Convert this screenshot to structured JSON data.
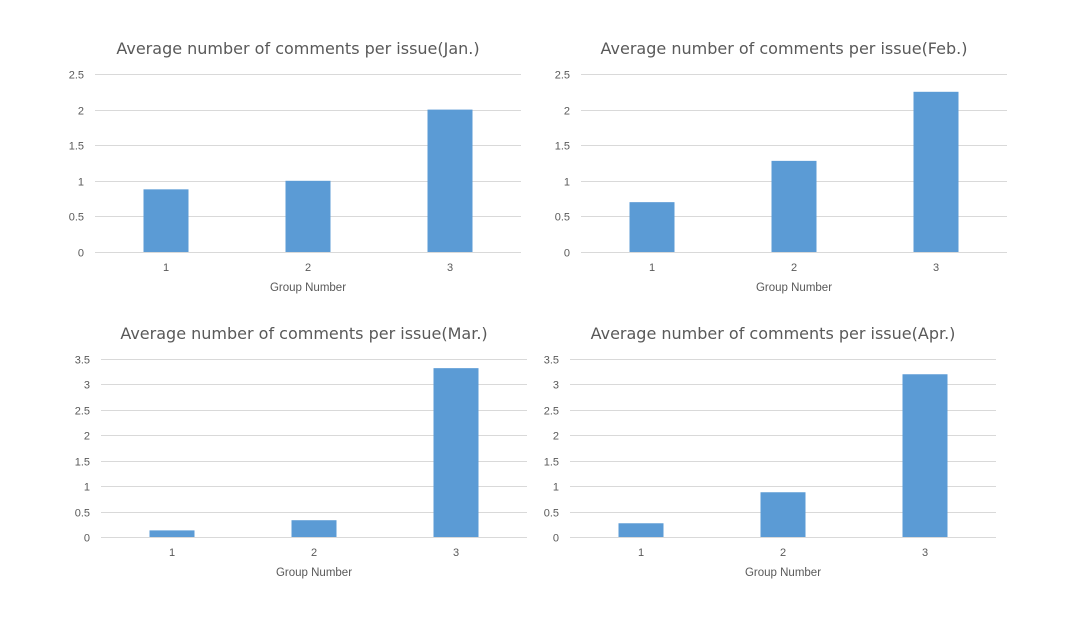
{
  "chart_data": [
    {
      "type": "bar",
      "title": "Average number of comments per issue(Jan.)",
      "xlabel": "Group Number",
      "ylabel": "",
      "categories": [
        "1",
        "2",
        "3"
      ],
      "values": [
        0.88,
        1.0,
        2.0
      ],
      "ylim": [
        0,
        2.5
      ],
      "yticks": [
        "0",
        "0.5",
        "1",
        "1.5",
        "2",
        "2.5"
      ],
      "grid": true,
      "color": "#5b9bd5"
    },
    {
      "type": "bar",
      "title": "Average number of comments per issue(Feb.)",
      "xlabel": "Group Number",
      "ylabel": "",
      "categories": [
        "1",
        "2",
        "3"
      ],
      "values": [
        0.7,
        1.28,
        2.25
      ],
      "ylim": [
        0,
        2.5
      ],
      "yticks": [
        "0",
        "0.5",
        "1",
        "1.5",
        "2",
        "2.5"
      ],
      "grid": true,
      "color": "#5b9bd5"
    },
    {
      "type": "bar",
      "title": "Average number of comments per issue(Mar.)",
      "xlabel": "Group Number",
      "ylabel": "",
      "categories": [
        "1",
        "2",
        "3"
      ],
      "values": [
        0.13,
        0.33,
        3.32
      ],
      "ylim": [
        0,
        3.5
      ],
      "yticks": [
        "0",
        "0.5",
        "1",
        "1.5",
        "2",
        "2.5",
        "3",
        "3.5"
      ],
      "grid": true,
      "color": "#5b9bd5"
    },
    {
      "type": "bar",
      "title": "Average number of comments per issue(Apr.)",
      "xlabel": "Group Number",
      "ylabel": "",
      "categories": [
        "1",
        "2",
        "3"
      ],
      "values": [
        0.27,
        0.88,
        3.2
      ],
      "ylim": [
        0,
        3.5
      ],
      "yticks": [
        "0",
        "0.5",
        "1",
        "1.5",
        "2",
        "2.5",
        "3",
        "3.5"
      ],
      "grid": true,
      "color": "#5b9bd5"
    }
  ]
}
